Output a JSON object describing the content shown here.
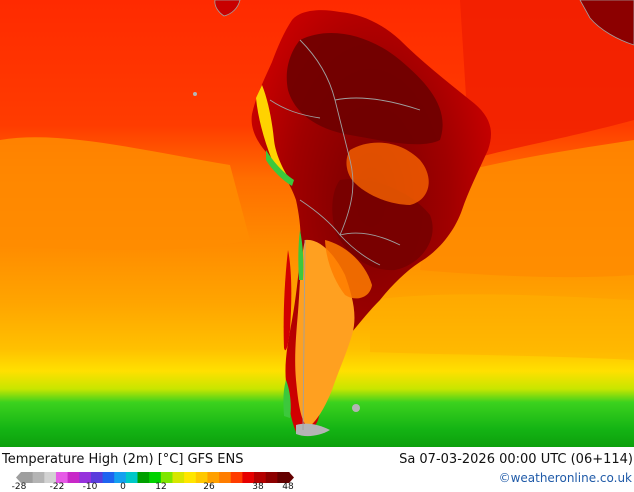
{
  "header": {
    "title": "Temperature High (2m) [°C] GFS ENS",
    "datetime": "Sa 07-03-2026 00:00 UTC (06+114)",
    "credit": "©weatheronline.co.uk"
  },
  "legend": {
    "ticks": [
      "-28",
      "-22",
      "-10",
      "0",
      "12",
      "26",
      "38",
      "48"
    ],
    "colors": [
      "#9e9e9e",
      "#b4b4b4",
      "#d2d2d2",
      "#e65ae6",
      "#c828c8",
      "#9632dc",
      "#5a3cdc",
      "#1e64f0",
      "#14a0f0",
      "#00c8c8",
      "#00a000",
      "#00d200",
      "#7fe600",
      "#d7e600",
      "#ffe600",
      "#ffc800",
      "#ffa000",
      "#ff7d00",
      "#ff3c00",
      "#e60000",
      "#b40000",
      "#8c0000",
      "#640000"
    ]
  },
  "map": {
    "region": "South America",
    "palette": {
      "ocean_north": "#ff2a00",
      "ocean_mid": "#ff7d0a",
      "ocean_south_orange": "#ffa600",
      "ocean_yellow": "#ffd200",
      "ocean_green": "#1ec81e",
      "land_hot": "#8c0000",
      "land_mid": "#c80000",
      "patagonia": "#ffa020",
      "andes_green": "#3cc83c",
      "borders": "#a0a0a0"
    }
  }
}
